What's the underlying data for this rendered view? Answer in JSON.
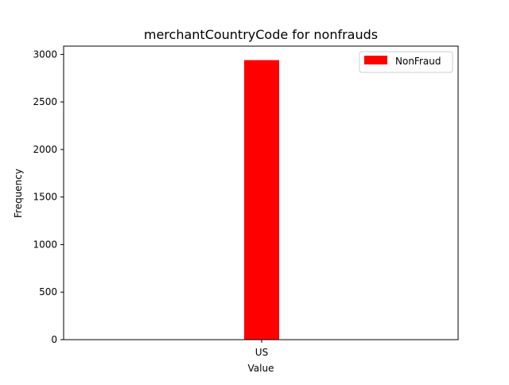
{
  "chart_data": {
    "type": "bar",
    "title": "merchantCountryCode for nonfrauds",
    "xlabel": "Value",
    "ylabel": "Frequency",
    "categories": [
      "US"
    ],
    "series": [
      {
        "name": "NonFraud",
        "values": [
          2940
        ],
        "color": "#ff0000"
      }
    ],
    "ylim": [
      0,
      3087
    ],
    "yticks": [
      0,
      500,
      1000,
      1500,
      2000,
      2500,
      3000
    ],
    "grid": false,
    "legend_position": "top-right"
  }
}
